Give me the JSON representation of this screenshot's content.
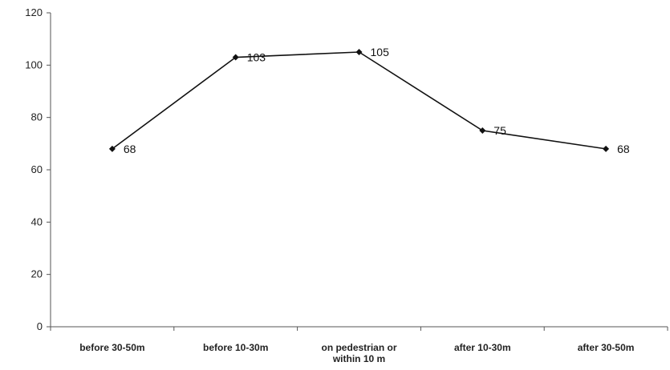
{
  "chart_data": {
    "type": "line",
    "title": "",
    "xlabel": "",
    "ylabel": "",
    "categories": [
      "before 30-50m",
      "before 10-30m",
      "on pedestrian or\nwithin 10 m",
      "after 10-30m",
      "after 30-50m"
    ],
    "series": [
      {
        "values": [
          68,
          103,
          105,
          75,
          68
        ]
      }
    ],
    "ylim": [
      0,
      120
    ],
    "yticks": [
      0,
      20,
      40,
      60,
      80,
      100,
      120
    ],
    "grid": false,
    "legend": "none",
    "data_labels": true,
    "colors": {
      "line": "#111111",
      "axis": "#555555",
      "text": "#222222"
    }
  }
}
